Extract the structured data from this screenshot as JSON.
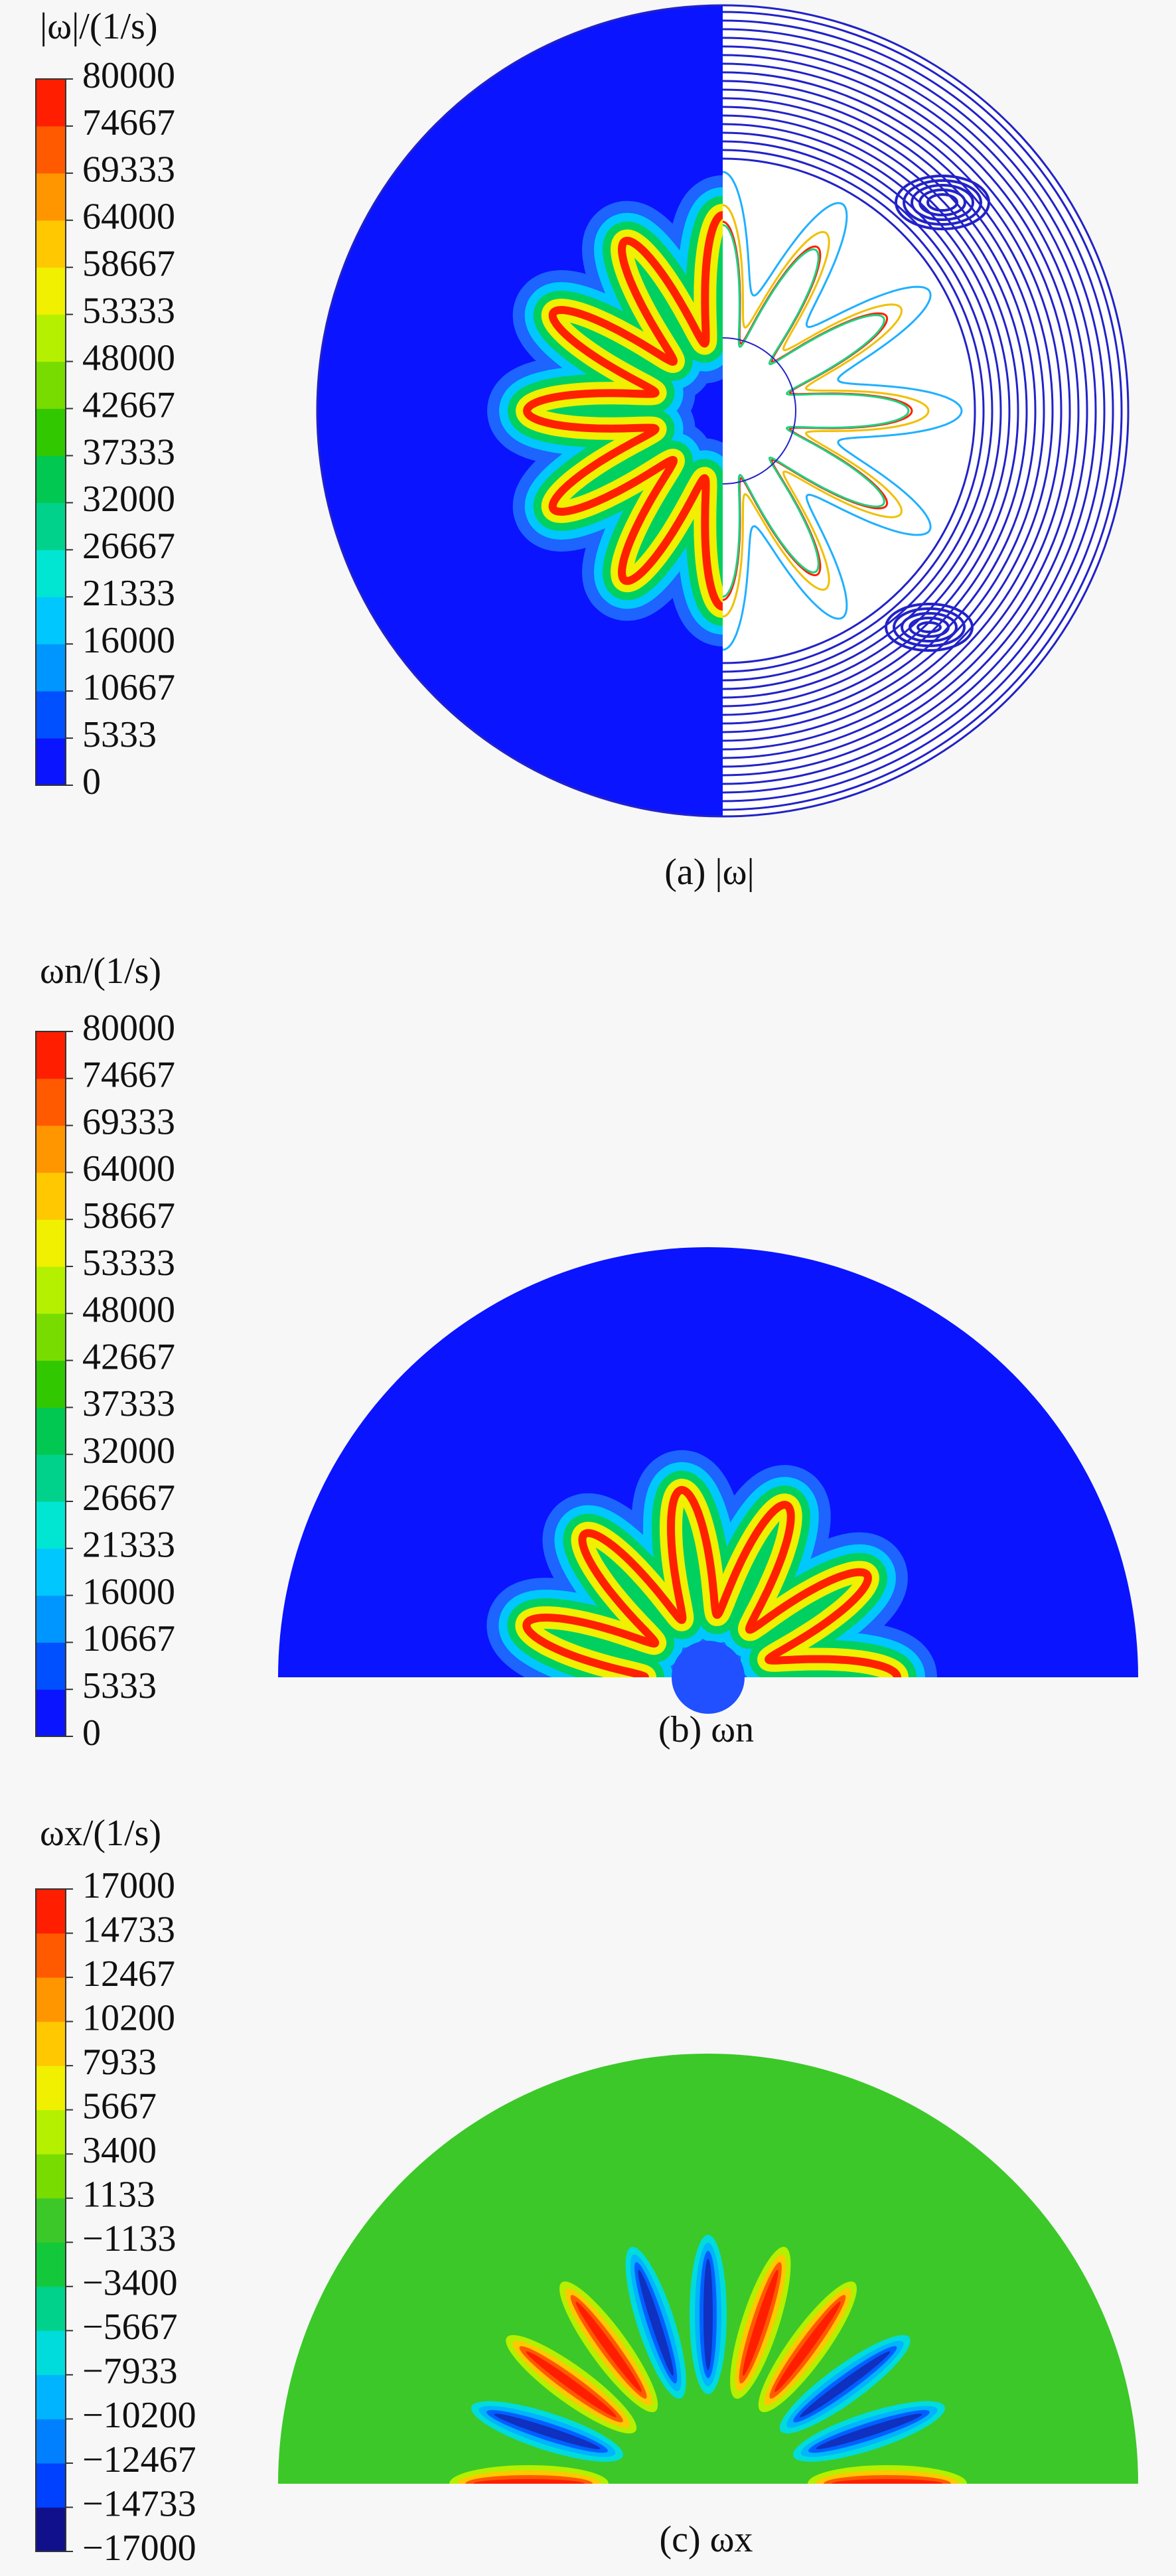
{
  "chart_data": [
    {
      "type": "contour",
      "title": "|ω|/(1/s)",
      "caption": "(a) |ω|",
      "ylim": [
        0,
        80000
      ],
      "yticks": [
        0,
        5333,
        10667,
        16000,
        21333,
        26667,
        32000,
        37333,
        42667,
        48000,
        53333,
        58667,
        64000,
        69333,
        74667,
        80000
      ],
      "colors": [
        "#0a14ff",
        "#0050ff",
        "#0096ff",
        "#00c8ff",
        "#00e6d2",
        "#00d28c",
        "#00c850",
        "#32c800",
        "#78dc00",
        "#b4f000",
        "#f0f000",
        "#ffc800",
        "#ff9600",
        "#ff5a00",
        "#ff1e00"
      ]
    },
    {
      "type": "contour",
      "title": "ωn/(1/s)",
      "caption": "(b) ωn",
      "ylim": [
        0,
        80000
      ],
      "yticks": [
        0,
        5333,
        10667,
        16000,
        21333,
        26667,
        32000,
        37333,
        42667,
        48000,
        53333,
        58667,
        64000,
        69333,
        74667,
        80000
      ],
      "colors": [
        "#0a14ff",
        "#0050ff",
        "#0096ff",
        "#00c8ff",
        "#00e6d2",
        "#00d28c",
        "#00c850",
        "#32c800",
        "#78dc00",
        "#b4f000",
        "#f0f000",
        "#ffc800",
        "#ff9600",
        "#ff5a00",
        "#ff1e00"
      ]
    },
    {
      "type": "contour",
      "title": "ωx/(1/s)",
      "caption": "(c) ωx",
      "ylim": [
        -17000,
        17000
      ],
      "yticks": [
        {
          "value": -17000,
          "label": "−17000"
        },
        {
          "value": -14733,
          "label": "−14733"
        },
        {
          "value": -12467,
          "label": "−12467"
        },
        {
          "value": -10200,
          "label": "−10200"
        },
        {
          "value": -7933,
          "label": "−7933"
        },
        {
          "value": -5667,
          "label": "−5667"
        },
        {
          "value": -3400,
          "label": "−3400"
        },
        {
          "value": -1133,
          "label": "−1133"
        },
        1133,
        3400,
        5667,
        7933,
        10200,
        12467,
        14733,
        17000
      ],
      "colors": [
        "#10108c",
        "#0040ff",
        "#0080ff",
        "#00b4ff",
        "#00dcdc",
        "#00d28c",
        "#14c83c",
        "#3cc828",
        "#78dc00",
        "#b4f000",
        "#f0f000",
        "#ffc800",
        "#ff9600",
        "#ff5a00",
        "#ff1e00"
      ]
    }
  ]
}
